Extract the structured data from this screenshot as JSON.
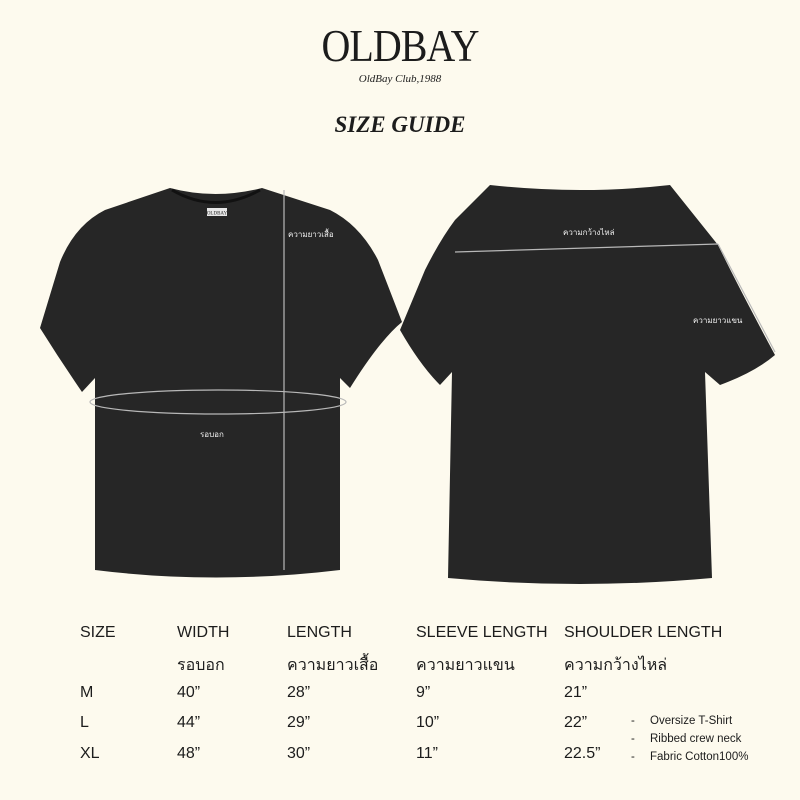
{
  "brand": {
    "name": "OLDBAY",
    "tagline": "OldBay Club,1988"
  },
  "title": "SIZE GUIDE",
  "front_shirt": {
    "tag": "OLDBAY",
    "length_label": "ความยาวเสื้อ",
    "chest_label": "รอบอก"
  },
  "back_shirt": {
    "shoulder_label": "ความกว้างไหล่",
    "sleeve_label": "ความยาวแขน"
  },
  "colors": {
    "background": "#fdfaee",
    "shirt": "#262626",
    "measure_line": "#b8b8b8"
  },
  "table": {
    "headers": [
      "SIZE",
      "WIDTH",
      "LENGTH",
      "SLEEVE LENGTH",
      "SHOULDER LENGTH"
    ],
    "subheaders": [
      "",
      "รอบอก",
      "ความยาวเสื้อ",
      "ความยาวแขน",
      "ความกว้างไหล่"
    ],
    "rows": [
      [
        "M",
        "40”",
        "28”",
        "9”",
        "21”"
      ],
      [
        "L",
        "44”",
        "29”",
        "10”",
        "22”"
      ],
      [
        "XL",
        "48”",
        "30”",
        "11”",
        "22.5”"
      ]
    ]
  },
  "notes": [
    "Oversize T-Shirt",
    "Ribbed crew neck",
    "Fabric Cotton100%"
  ]
}
